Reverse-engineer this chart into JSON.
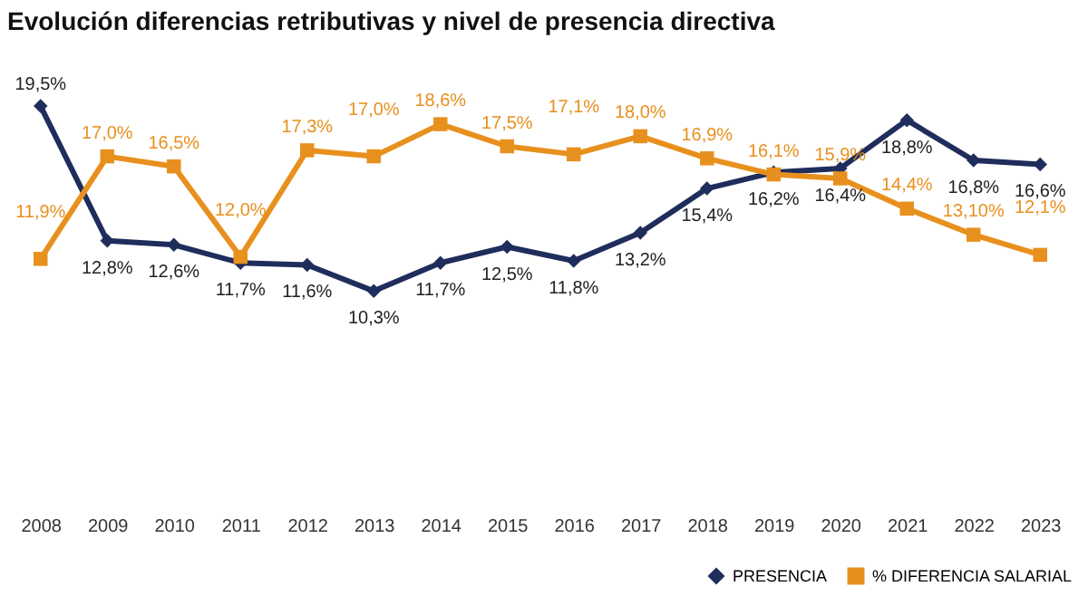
{
  "chart_data": {
    "type": "line",
    "title": "Evolución diferencias retributivas y nivel de presencia directiva",
    "categories": [
      "2008",
      "2009",
      "2010",
      "2011",
      "2012",
      "2013",
      "2014",
      "2015",
      "2016",
      "2017",
      "2018",
      "2019",
      "2020",
      "2021",
      "2022",
      "2023"
    ],
    "series": [
      {
        "name": "PRESENCIA",
        "color": "#1f2d5c",
        "marker": "diamond",
        "values": [
          19.5,
          12.8,
          12.6,
          11.7,
          11.6,
          10.3,
          11.7,
          12.5,
          11.8,
          13.2,
          15.4,
          16.2,
          16.4,
          18.8,
          16.8,
          16.6
        ],
        "value_labels": [
          "19,5%",
          "12,8%",
          "12,6%",
          "11,7%",
          "11,6%",
          "10,3%",
          "11,7%",
          "12,5%",
          "11,8%",
          "13,2%",
          "15,4%",
          "16,2%",
          "16,4%",
          "18,8%",
          "16,8%",
          "16,6%"
        ]
      },
      {
        "name": "% DIFERENCIA SALARIAL",
        "color": "#e8901e",
        "marker": "square",
        "values": [
          11.9,
          17.0,
          16.5,
          12.0,
          17.3,
          17.0,
          18.6,
          17.5,
          17.1,
          18.0,
          16.9,
          16.1,
          15.9,
          14.4,
          13.1,
          12.1
        ],
        "value_labels": [
          "11,9%",
          "17,0%",
          "16,5%",
          "12,0%",
          "17,3%",
          "17,0%",
          "18,6%",
          "17,5%",
          "17,1%",
          "18,0%",
          "16,9%",
          "16,1%",
          "15,9%",
          "14,4%",
          "13,10%",
          "12,1%"
        ]
      }
    ],
    "grid": false,
    "legend": "bottom right",
    "line_style": "solid"
  }
}
